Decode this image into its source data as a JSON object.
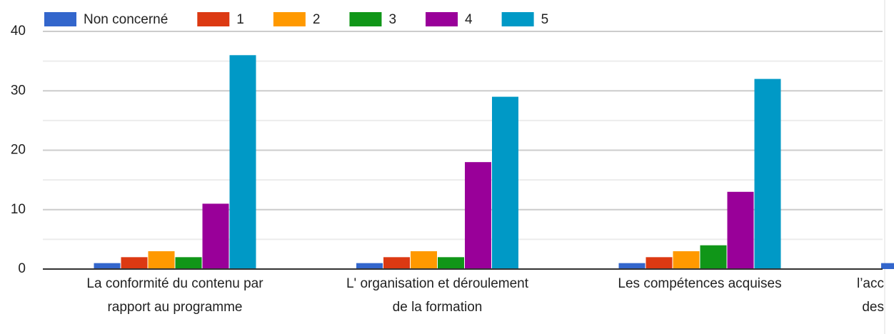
{
  "chart_data": {
    "type": "bar",
    "categories": [
      [
        "La conformité du contenu par",
        "rapport au programme"
      ],
      [
        "L' organisation et déroulement",
        "de la formation"
      ],
      [
        "Les compétences acquises"
      ],
      [
        "l’acc",
        "des"
      ]
    ],
    "series": [
      {
        "name": "Non concerné",
        "color": "#3366cc",
        "values": [
          1,
          1,
          1,
          1
        ]
      },
      {
        "name": "1",
        "color": "#dc3912",
        "values": [
          2,
          2,
          2,
          null
        ]
      },
      {
        "name": "2",
        "color": "#ff9900",
        "values": [
          3,
          3,
          3,
          null
        ]
      },
      {
        "name": "3",
        "color": "#109618",
        "values": [
          2,
          2,
          4,
          null
        ]
      },
      {
        "name": "4",
        "color": "#990099",
        "values": [
          11,
          18,
          13,
          null
        ]
      },
      {
        "name": "5",
        "color": "#0099c6",
        "values": [
          36,
          29,
          32,
          null
        ]
      }
    ],
    "ylim": [
      0,
      40
    ],
    "yticks": [
      0,
      10,
      20,
      30,
      40
    ],
    "minor_yticks": [
      5,
      15,
      25,
      35
    ],
    "grid": true,
    "legend": "top"
  }
}
